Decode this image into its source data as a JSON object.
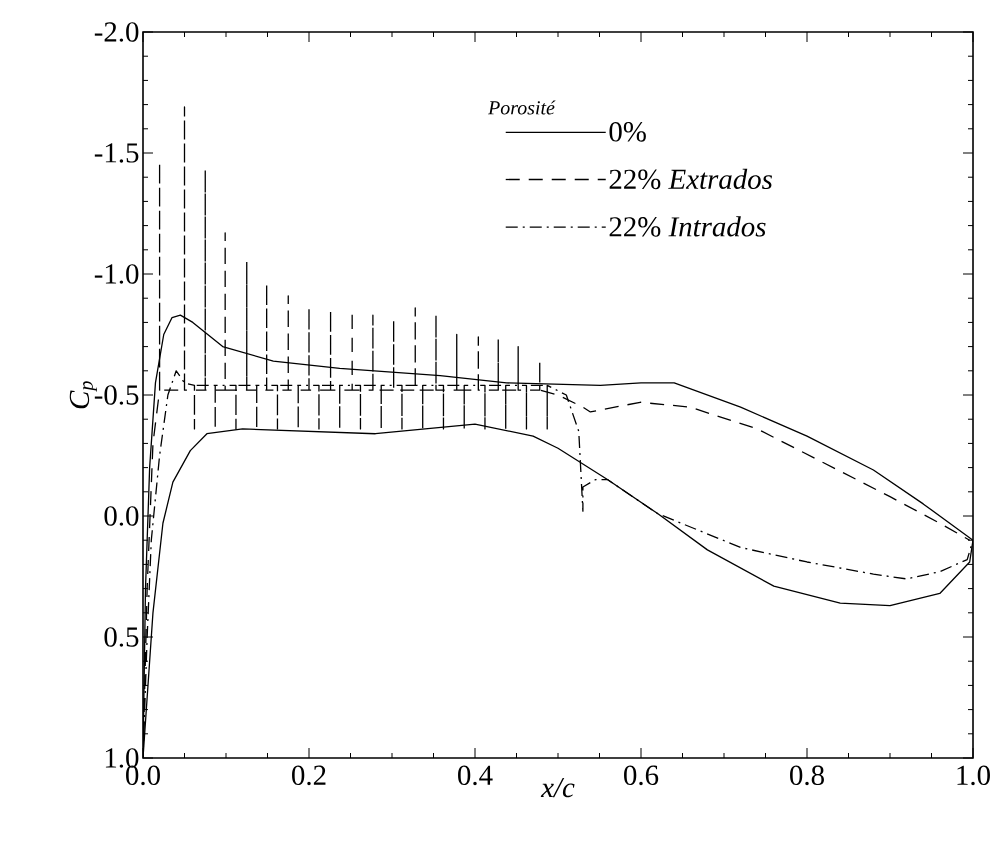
{
  "chart_data": {
    "type": "line",
    "xlabel": "x/c",
    "ylabel": "C$_{p}$",
    "legend_title": "Porosité",
    "legend": "top right",
    "grid": false,
    "marker": "none",
    "xlim": [
      0.0,
      1.0
    ],
    "ylim": [
      1.0,
      -2.0
    ],
    "xticks": [
      {
        "value": 0.0,
        "label": "0.0"
      },
      {
        "value": 0.2,
        "label": "0.2"
      },
      {
        "value": 0.4,
        "label": "0.4"
      },
      {
        "value": 0.6,
        "label": "0.6"
      },
      {
        "value": 0.8,
        "label": "0.8"
      },
      {
        "value": 1.0,
        "label": "1.0"
      }
    ],
    "yticks": [
      {
        "value": -2.0,
        "label": "-2.0"
      },
      {
        "value": -1.5,
        "label": "-1.5"
      },
      {
        "value": -1.0,
        "label": "-1.0"
      },
      {
        "value": -0.5,
        "label": "-0.5"
      },
      {
        "value": 0.0,
        "label": "0.0"
      },
      {
        "value": 0.5,
        "label": "0.5"
      },
      {
        "value": 1.0,
        "label": "1.0"
      }
    ],
    "series": [
      {
        "name": "0%",
        "color": "#000000",
        "line_style": "solid",
        "x": [
          0,
          0.003,
          0.008,
          0.015,
          0.025,
          0.035,
          0.045,
          0.06,
          0.096,
          0.157,
          0.237,
          0.358,
          0.438,
          0.551,
          0.6,
          0.64,
          0.72,
          0.8,
          0.88,
          0.94,
          1.0
        ],
        "values": [
          1.0,
          0.3,
          -0.2,
          -0.55,
          -0.75,
          -0.82,
          -0.83,
          -0.8,
          -0.7,
          -0.64,
          -0.61,
          -0.58,
          -0.55,
          -0.54,
          -0.55,
          -0.55,
          -0.45,
          -0.33,
          -0.19,
          -0.05,
          0.1
        ]
      },
      {
        "name": "22% *Extrados*",
        "color": "#000000",
        "line_style": "dashed",
        "x": [
          0,
          0.005,
          0.012,
          0.02,
          0.02,
          0.02,
          0.05,
          0.05,
          0.05,
          0.075,
          0.075,
          0.075,
          0.099,
          0.099,
          0.099,
          0.125,
          0.125,
          0.125,
          0.149,
          0.149,
          0.149,
          0.175,
          0.175,
          0.175,
          0.2,
          0.2,
          0.2,
          0.226,
          0.226,
          0.226,
          0.252,
          0.252,
          0.252,
          0.277,
          0.277,
          0.277,
          0.302,
          0.302,
          0.302,
          0.328,
          0.328,
          0.328,
          0.353,
          0.353,
          0.353,
          0.378,
          0.378,
          0.378,
          0.404,
          0.404,
          0.404,
          0.428,
          0.428,
          0.428,
          0.452,
          0.452,
          0.452,
          0.478,
          0.478,
          0.478,
          0.5,
          0.53,
          0.539,
          0.599,
          0.659,
          0.74,
          0.82,
          0.9,
          0.96,
          0.996
        ],
        "values": [
          1.0,
          0.3,
          -0.3,
          -0.52,
          -1.46,
          -0.52,
          -0.52,
          -1.69,
          -0.52,
          -0.52,
          -1.43,
          -0.52,
          -0.52,
          -1.17,
          -0.52,
          -0.52,
          -1.05,
          -0.52,
          -0.52,
          -0.96,
          -0.52,
          -0.52,
          -0.91,
          -0.52,
          -0.52,
          -0.86,
          -0.52,
          -0.52,
          -0.85,
          -0.52,
          -0.52,
          -0.85,
          -0.52,
          -0.52,
          -0.83,
          -0.52,
          -0.52,
          -0.81,
          -0.52,
          -0.52,
          -0.86,
          -0.52,
          -0.52,
          -0.83,
          -0.52,
          -0.52,
          -0.75,
          -0.52,
          -0.52,
          -0.74,
          -0.52,
          -0.52,
          -0.73,
          -0.52,
          -0.52,
          -0.7,
          -0.52,
          -0.52,
          -0.64,
          -0.52,
          -0.5,
          -0.45,
          -0.43,
          -0.47,
          -0.45,
          -0.36,
          -0.22,
          -0.08,
          0.03,
          0.1
        ]
      },
      {
        "name": "22% *Intrados*",
        "color": "#000000",
        "line_style": "dashdot",
        "x": [
          0,
          0.005,
          0.01,
          0.02,
          0.03,
          0.04,
          0.05,
          0.062,
          0.062,
          0.062,
          0.087,
          0.087,
          0.087,
          0.112,
          0.112,
          0.112,
          0.137,
          0.137,
          0.137,
          0.162,
          0.162,
          0.162,
          0.187,
          0.187,
          0.187,
          0.212,
          0.212,
          0.212,
          0.237,
          0.237,
          0.237,
          0.262,
          0.262,
          0.262,
          0.287,
          0.287,
          0.287,
          0.312,
          0.312,
          0.312,
          0.337,
          0.337,
          0.337,
          0.362,
          0.362,
          0.362,
          0.387,
          0.387,
          0.387,
          0.412,
          0.412,
          0.412,
          0.437,
          0.437,
          0.437,
          0.462,
          0.462,
          0.462,
          0.487,
          0.487,
          0.487,
          0.51,
          0.525,
          0.53,
          0.53,
          0.545,
          0.56,
          0.62,
          0.72,
          0.8,
          0.88,
          0.92,
          0.96,
          0.993,
          1.0
        ],
        "values": [
          1.0,
          0.5,
          0.1,
          -0.25,
          -0.5,
          -0.6,
          -0.55,
          -0.54,
          -0.36,
          -0.54,
          -0.54,
          -0.36,
          -0.54,
          -0.54,
          -0.36,
          -0.54,
          -0.54,
          -0.36,
          -0.54,
          -0.54,
          -0.36,
          -0.54,
          -0.54,
          -0.36,
          -0.54,
          -0.54,
          -0.36,
          -0.54,
          -0.54,
          -0.36,
          -0.54,
          -0.54,
          -0.36,
          -0.54,
          -0.54,
          -0.36,
          -0.54,
          -0.54,
          -0.36,
          -0.54,
          -0.54,
          -0.36,
          -0.54,
          -0.54,
          -0.36,
          -0.54,
          -0.54,
          -0.36,
          -0.54,
          -0.54,
          -0.36,
          -0.54,
          -0.54,
          -0.36,
          -0.54,
          -0.54,
          -0.36,
          -0.54,
          -0.54,
          -0.36,
          -0.54,
          -0.5,
          -0.35,
          -0.02,
          -0.12,
          -0.15,
          -0.15,
          -0.01,
          0.13,
          0.19,
          0.24,
          0.26,
          0.23,
          0.18,
          0.1
        ]
      },
      {
        "color": "#000000",
        "line_style": "solid",
        "x": [
          0,
          0.012,
          0.024,
          0.036,
          0.057,
          0.077,
          0.12,
          0.28,
          0.4,
          0.47,
          0.5,
          0.56,
          0.62,
          0.68,
          0.76,
          0.84,
          0.9,
          0.96,
          0.996,
          1.0
        ],
        "values": [
          1.0,
          0.4,
          0.03,
          -0.14,
          -0.27,
          -0.34,
          -0.36,
          -0.34,
          -0.38,
          -0.33,
          -0.28,
          -0.15,
          -0.01,
          0.14,
          0.29,
          0.36,
          0.37,
          0.32,
          0.19,
          0.1
        ]
      }
    ]
  }
}
